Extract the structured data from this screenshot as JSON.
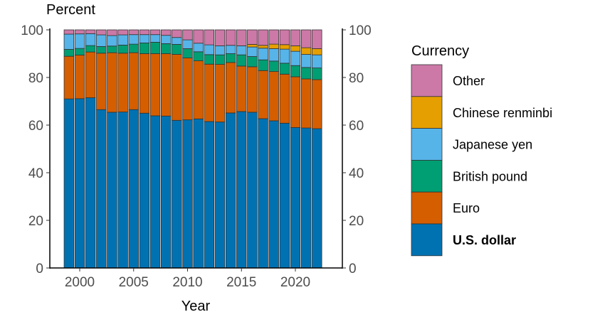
{
  "chart_data": {
    "type": "bar",
    "stacked": true,
    "title": "",
    "ylabel": "Percent",
    "xlabel": "Year",
    "ylim": [
      0,
      100
    ],
    "yticks": [
      0,
      20,
      40,
      60,
      80,
      100
    ],
    "xticks": [
      2000,
      2005,
      2010,
      2015,
      2020
    ],
    "secondary_y_axis": true,
    "legend": {
      "title": "Currency",
      "placement": "right"
    },
    "categories": [
      1999,
      2000,
      2001,
      2002,
      2003,
      2004,
      2005,
      2006,
      2007,
      2008,
      2009,
      2010,
      2011,
      2012,
      2013,
      2014,
      2015,
      2016,
      2017,
      2018,
      2019,
      2020,
      2021,
      2022
    ],
    "series": [
      {
        "name": "U.S. dollar",
        "color": "#0072B2",
        "values": [
          71.0,
          71.1,
          71.5,
          66.5,
          65.4,
          65.5,
          66.5,
          65.0,
          63.9,
          63.8,
          62.0,
          62.2,
          62.6,
          61.5,
          61.3,
          65.1,
          65.7,
          65.4,
          62.7,
          61.8,
          60.8,
          59.0,
          58.8,
          58.5
        ]
      },
      {
        "name": "Euro",
        "color": "#D55E00",
        "values": [
          17.9,
          18.3,
          19.2,
          23.7,
          25.0,
          24.7,
          23.9,
          25.0,
          26.1,
          26.2,
          27.7,
          26.0,
          24.4,
          24.1,
          24.2,
          21.2,
          19.1,
          19.1,
          20.2,
          20.7,
          20.6,
          21.3,
          20.6,
          20.6
        ]
      },
      {
        "name": "British pound",
        "color": "#009E73",
        "values": [
          2.9,
          2.8,
          2.7,
          2.8,
          2.8,
          3.4,
          3.6,
          4.5,
          4.8,
          4.2,
          4.2,
          3.9,
          3.8,
          4.0,
          4.0,
          3.7,
          4.7,
          4.3,
          4.5,
          4.4,
          4.6,
          4.7,
          4.8,
          4.9
        ]
      },
      {
        "name": "Japanese yen",
        "color": "#56B4E9",
        "values": [
          6.4,
          6.1,
          5.0,
          4.9,
          4.4,
          4.3,
          4.0,
          3.5,
          3.2,
          3.5,
          2.9,
          3.7,
          3.6,
          4.1,
          3.8,
          3.5,
          3.8,
          4.0,
          4.9,
          5.2,
          5.9,
          6.0,
          5.5,
          5.5
        ]
      },
      {
        "name": "Chinese renminbi",
        "color": "#E69F00",
        "values": [
          0,
          0,
          0,
          0,
          0,
          0,
          0,
          0,
          0,
          0,
          0,
          0,
          0,
          0,
          0,
          0,
          0,
          1.1,
          1.2,
          1.9,
          1.9,
          2.3,
          2.8,
          2.6
        ]
      },
      {
        "name": "Other",
        "color": "#CC79A7",
        "values": [
          1.8,
          1.7,
          1.6,
          2.1,
          2.4,
          2.1,
          2.0,
          2.0,
          2.0,
          2.3,
          3.2,
          4.2,
          5.6,
          6.3,
          6.7,
          6.5,
          6.7,
          6.1,
          6.5,
          6.0,
          6.2,
          6.7,
          7.5,
          7.9
        ]
      }
    ]
  }
}
